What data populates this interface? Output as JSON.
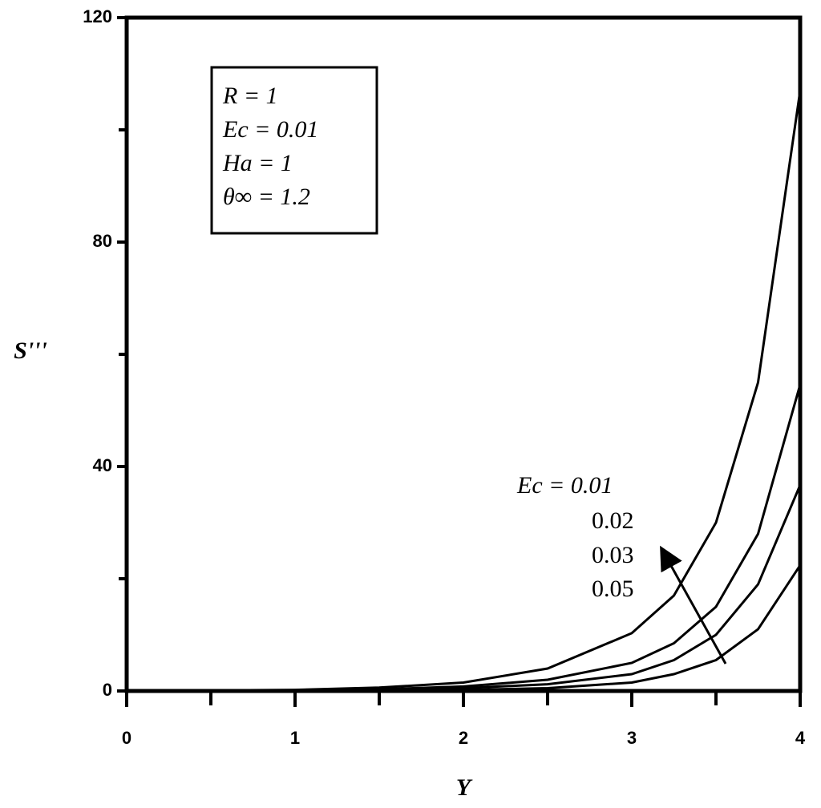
{
  "chart_data": {
    "type": "line",
    "xlabel": "Y",
    "ylabel": "S'''",
    "x": [
      0,
      1,
      1.5,
      2,
      2.5,
      3,
      3.25,
      3.5,
      3.75,
      4
    ],
    "series": [
      {
        "name": "Ec = 0.01",
        "color": "#000000",
        "values": [
          0,
          0.2,
          0.6,
          1.5,
          4,
          10.3,
          17,
          30,
          55,
          107
        ]
      },
      {
        "name": "0.02",
        "color": "#000000",
        "values": [
          0,
          0.1,
          0.3,
          0.8,
          2,
          5,
          8.5,
          15,
          28,
          54.6
        ]
      },
      {
        "name": "0.03",
        "color": "#000000",
        "values": [
          0,
          0.05,
          0.2,
          0.5,
          1.2,
          3,
          5.5,
          10,
          19,
          36.7
        ]
      },
      {
        "name": "0.05",
        "color": "#000000",
        "values": [
          0,
          0,
          0.1,
          0.2,
          0.5,
          1.5,
          3,
          5.5,
          11,
          22.4
        ]
      }
    ],
    "params": [
      "R = 1",
      "Ec = 0.01",
      "Ha = 1",
      "θ∞ = 1.2"
    ],
    "xlim": [
      0,
      4
    ],
    "ylim": [
      0,
      120
    ],
    "xticks": [
      0,
      1,
      2,
      3,
      4
    ],
    "yticks": [
      0,
      40,
      80,
      120
    ],
    "xticks_minor": [
      0.5,
      1.5,
      2.5,
      3.5
    ],
    "yticks_minor": [
      20,
      60,
      100
    ],
    "grid": false
  }
}
